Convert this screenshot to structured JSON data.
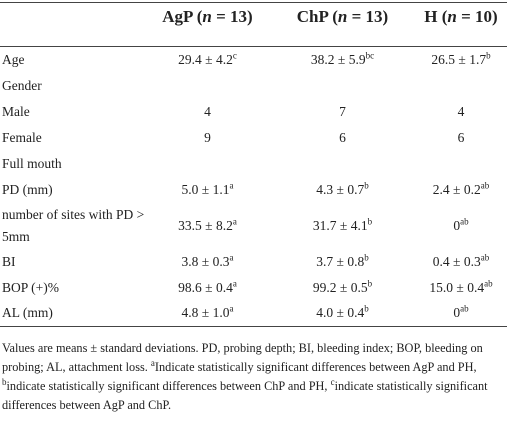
{
  "table": {
    "header": [
      [
        "AgP (",
        "n",
        " = 13)"
      ],
      [
        "ChP (",
        "n",
        " = 13)"
      ],
      [
        "H (",
        "n",
        " = 10)"
      ]
    ],
    "rows": [
      {
        "label": "Age",
        "cells": [
          {
            "text": "29.4 ± 4.2",
            "sup": "c"
          },
          {
            "text": "38.2 ± 5.9",
            "sup": "bc"
          },
          {
            "text": "26.5 ± 1.7",
            "sup": "b"
          }
        ]
      },
      {
        "label": "Gender"
      },
      {
        "label": "Male",
        "cells": [
          {
            "text": "4"
          },
          {
            "text": "7"
          },
          {
            "text": "4"
          }
        ]
      },
      {
        "label": "Female",
        "cells": [
          {
            "text": "9"
          },
          {
            "text": "6"
          },
          {
            "text": "6"
          }
        ]
      },
      {
        "label": "Full mouth"
      },
      {
        "label": "PD (mm)",
        "cells": [
          {
            "text": "5.0 ± 1.1",
            "sup": "a"
          },
          {
            "text": "4.3 ± 0.7",
            "sup": "b"
          },
          {
            "text": "2.4 ± 0.2",
            "sup": "ab"
          }
        ]
      },
      {
        "label": "number of sites with PD > 5mm",
        "cells": [
          {
            "text": "33.5 ± 8.2",
            "sup": "a"
          },
          {
            "text": "31.7 ± 4.1",
            "sup": "b"
          },
          {
            "text": "0",
            "sup": "ab"
          }
        ]
      },
      {
        "label": "BI",
        "cells": [
          {
            "text": "3.8 ± 0.3",
            "sup": "a"
          },
          {
            "text": "3.7 ± 0.8",
            "sup": "b"
          },
          {
            "text": "0.4 ± 0.3",
            "sup": "ab"
          }
        ]
      },
      {
        "label": "BOP (+)%",
        "cells": [
          {
            "text": "98.6 ± 0.4",
            "sup": "a"
          },
          {
            "text": "99.2 ± 0.5",
            "sup": "b"
          },
          {
            "text": "15.0 ± 0.4",
            "sup": "ab"
          }
        ]
      },
      {
        "label": "AL (mm)",
        "cells": [
          {
            "text": "4.8 ± 1.0",
            "sup": "a"
          },
          {
            "text": "4.0 ± 0.4",
            "sup": "b"
          },
          {
            "text": "0",
            "sup": "ab"
          }
        ]
      }
    ],
    "footnote": [
      {
        "text": "Values are means ± standard deviations. PD, probing depth; BI, bleeding index; BOP, bleeding on probing; AL, attachment loss. "
      },
      {
        "sup": "a",
        "text": "Indicate statistically significant differences between AgP and PH, "
      },
      {
        "sup": "b",
        "text": "indicate statistically significant differences between ChP and PH, "
      },
      {
        "sup": "c",
        "text": "indicate statistically significant differences between AgP and ChP."
      }
    ]
  }
}
